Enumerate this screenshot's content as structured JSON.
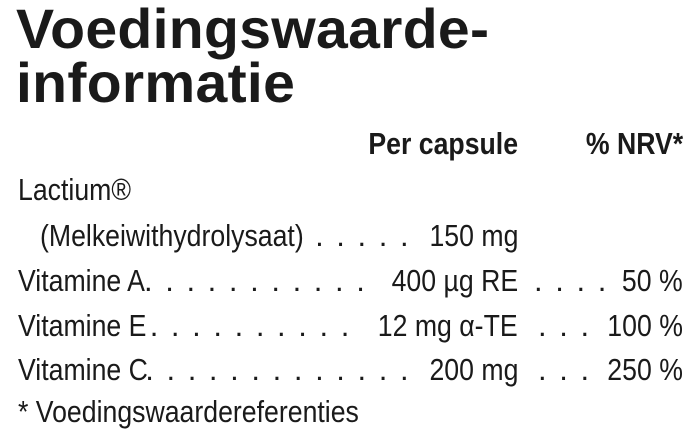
{
  "title": {
    "line1": "Voedingswaarde-",
    "line2": "informatie"
  },
  "columns": {
    "per": "Per capsule",
    "nrv": "% NRV*"
  },
  "lactium": {
    "label": "Lactium®",
    "sublabel": "(Melkeiwithydrolysaat)",
    "amount": "150 mg"
  },
  "rows": [
    {
      "label": "Vitamine A",
      "amount": "400 µg RE",
      "nrv": "50 %"
    },
    {
      "label": "Vitamine E",
      "amount": "12 mg α-TE",
      "nrv": "100 %"
    },
    {
      "label": "Vitamine C",
      "amount": "200 mg",
      "nrv": "250 %"
    }
  ],
  "footnote": "* Voedingswaardereferenties"
}
